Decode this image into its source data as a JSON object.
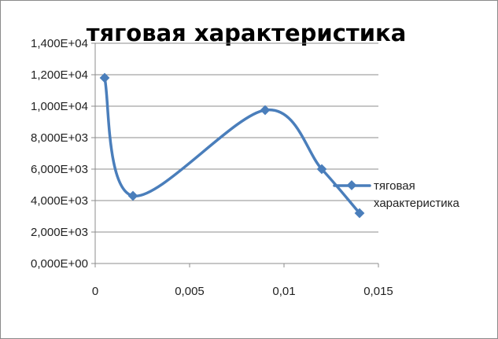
{
  "chart_data": {
    "type": "scatter",
    "title": "тяговая характеристика",
    "xlabel": "",
    "ylabel": "",
    "xlim": [
      0,
      0.015
    ],
    "ylim": [
      0,
      14000
    ],
    "x_ticks": [
      "0",
      "0,005",
      "0,01",
      "0,015"
    ],
    "y_ticks": [
      "0,000E+00",
      "2,000E+03",
      "4,000E+03",
      "6,000E+03",
      "8,000E+03",
      "1,000E+04",
      "1,200E+04",
      "1,400E+04"
    ],
    "grid": true,
    "legend_position": "right",
    "color": "#4a7ebb",
    "series": [
      {
        "name": "тяговая характеристика",
        "x": [
          0.0005,
          0.002,
          0.009,
          0.012,
          0.014
        ],
        "y": [
          11800,
          4300,
          9750,
          6000,
          3200
        ]
      }
    ]
  }
}
